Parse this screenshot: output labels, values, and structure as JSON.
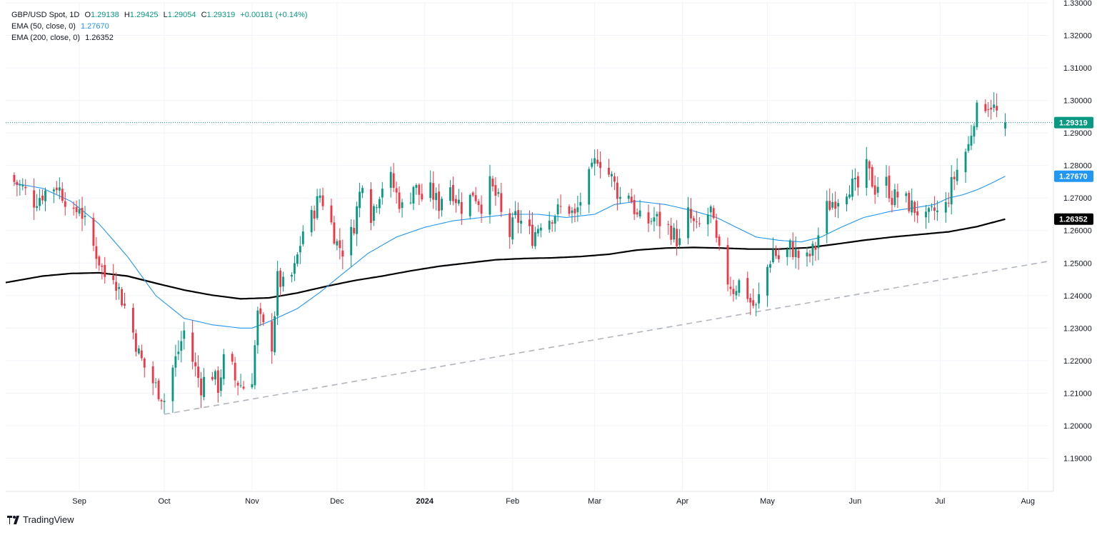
{
  "symbol": "GBP/USD Spot, 1D",
  "ohlc": {
    "open_label": "O",
    "open": "1.29138",
    "high_label": "H",
    "high": "1.29425",
    "low_label": "L",
    "low": "1.29054",
    "close_label": "C",
    "close": "1.29319",
    "change": "+0.00181 (+0.14%)"
  },
  "indicators": [
    {
      "label": "EMA (50, close, 0)",
      "value": "1.27670",
      "color": "#2196f3"
    },
    {
      "label": "EMA (200, close, 0)",
      "value": "1.26352",
      "color": "#000000"
    }
  ],
  "brand": "TradingView",
  "colors": {
    "up": "#089981",
    "down": "#f23645",
    "ema50": "#2196f3",
    "ema200": "#000000",
    "trend": "#b2b5be",
    "grid": "#f0f3fa",
    "axis": "#131722"
  },
  "chart_data": {
    "type": "candlestick",
    "title": "GBP/USD Spot, 1D",
    "ylim": [
      1.18,
      1.33
    ],
    "y_ticks": [
      "1.19000",
      "1.20000",
      "1.21000",
      "1.22000",
      "1.23000",
      "1.24000",
      "1.25000",
      "1.26000",
      "1.27000",
      "1.28000",
      "1.29000",
      "1.30000",
      "1.31000",
      "1.32000",
      "1.33000"
    ],
    "x_ticks": [
      {
        "label": "Sep",
        "day": 23,
        "bold": false
      },
      {
        "label": "Oct",
        "day": 53,
        "bold": false
      },
      {
        "label": "Nov",
        "day": 84,
        "bold": false
      },
      {
        "label": "Dec",
        "day": 114,
        "bold": false
      },
      {
        "label": "2024",
        "day": 145,
        "bold": true
      },
      {
        "label": "Feb",
        "day": 176,
        "bold": false
      },
      {
        "label": "Mar",
        "day": 205,
        "bold": false
      },
      {
        "label": "Apr",
        "day": 236,
        "bold": false
      },
      {
        "label": "May",
        "day": 266,
        "bold": false
      },
      {
        "label": "Jun",
        "day": 297,
        "bold": false
      },
      {
        "label": "Jul",
        "day": 327,
        "bold": false
      },
      {
        "label": "Aug",
        "day": 358,
        "bold": false
      }
    ],
    "day_range": [
      -3,
      365
    ],
    "close_path": [
      [
        0,
        1.275
      ],
      [
        3,
        1.273
      ],
      [
        7,
        1.269
      ],
      [
        11,
        1.272
      ],
      [
        15,
        1.274
      ],
      [
        18,
        1.27
      ],
      [
        20,
        1.262
      ],
      [
        23,
        1.268
      ],
      [
        26,
        1.259
      ],
      [
        29,
        1.253
      ],
      [
        32,
        1.246
      ],
      [
        35,
        1.247
      ],
      [
        38,
        1.239
      ],
      [
        41,
        1.232
      ],
      [
        44,
        1.222
      ],
      [
        47,
        1.216
      ],
      [
        50,
        1.212
      ],
      [
        53,
        1.208
      ],
      [
        55,
        1.215
      ],
      [
        58,
        1.223
      ],
      [
        61,
        1.232
      ],
      [
        63,
        1.22
      ],
      [
        66,
        1.212
      ],
      [
        69,
        1.218
      ],
      [
        72,
        1.212
      ],
      [
        75,
        1.224
      ],
      [
        78,
        1.214
      ],
      [
        81,
        1.212
      ],
      [
        84,
        1.215
      ],
      [
        86,
        1.234
      ],
      [
        88,
        1.23
      ],
      [
        91,
        1.225
      ],
      [
        93,
        1.245
      ],
      [
        96,
        1.242
      ],
      [
        99,
        1.248
      ],
      [
        102,
        1.26
      ],
      [
        105,
        1.264
      ],
      [
        108,
        1.271
      ],
      [
        111,
        1.265
      ],
      [
        114,
        1.256
      ],
      [
        117,
        1.253
      ],
      [
        120,
        1.262
      ],
      [
        123,
        1.276
      ],
      [
        126,
        1.265
      ],
      [
        129,
        1.272
      ],
      [
        132,
        1.278
      ],
      [
        135,
        1.271
      ],
      [
        138,
        1.265
      ],
      [
        141,
        1.274
      ],
      [
        144,
        1.27
      ],
      [
        147,
        1.272
      ],
      [
        150,
        1.268
      ],
      [
        153,
        1.276
      ],
      [
        156,
        1.27
      ],
      [
        159,
        1.266
      ],
      [
        162,
        1.272
      ],
      [
        165,
        1.268
      ],
      [
        168,
        1.274
      ],
      [
        171,
        1.269
      ],
      [
        174,
        1.256
      ],
      [
        177,
        1.264
      ],
      [
        180,
        1.262
      ],
      [
        183,
        1.258
      ],
      [
        186,
        1.263
      ],
      [
        189,
        1.264
      ],
      [
        192,
        1.266
      ],
      [
        195,
        1.268
      ],
      [
        198,
        1.264
      ],
      [
        201,
        1.272
      ],
      [
        204,
        1.278
      ],
      [
        206,
        1.283
      ],
      [
        208,
        1.28
      ],
      [
        211,
        1.276
      ],
      [
        214,
        1.27
      ],
      [
        217,
        1.272
      ],
      [
        220,
        1.264
      ],
      [
        223,
        1.262
      ],
      [
        226,
        1.264
      ],
      [
        229,
        1.262
      ],
      [
        232,
        1.26
      ],
      [
        235,
        1.256
      ],
      [
        238,
        1.265
      ],
      [
        241,
        1.26
      ],
      [
        244,
        1.264
      ],
      [
        246,
        1.266
      ],
      [
        248,
        1.256
      ],
      [
        251,
        1.246
      ],
      [
        254,
        1.242
      ],
      [
        257,
        1.245
      ],
      [
        260,
        1.238
      ],
      [
        262,
        1.236
      ],
      [
        265,
        1.246
      ],
      [
        268,
        1.254
      ],
      [
        271,
        1.25
      ],
      [
        274,
        1.255
      ],
      [
        277,
        1.252
      ],
      [
        280,
        1.251
      ],
      [
        283,
        1.255
      ],
      [
        286,
        1.266
      ],
      [
        289,
        1.269
      ],
      [
        292,
        1.271
      ],
      [
        295,
        1.274
      ],
      [
        298,
        1.273
      ],
      [
        301,
        1.279
      ],
      [
        304,
        1.273
      ],
      [
        307,
        1.277
      ],
      [
        310,
        1.27
      ],
      [
        313,
        1.271
      ],
      [
        316,
        1.268
      ],
      [
        319,
        1.266
      ],
      [
        322,
        1.263
      ],
      [
        325,
        1.266
      ],
      [
        328,
        1.264
      ],
      [
        331,
        1.274
      ],
      [
        334,
        1.281
      ],
      [
        337,
        1.286
      ],
      [
        339,
        1.295
      ],
      [
        341,
        1.298
      ],
      [
        343,
        1.299
      ],
      [
        345,
        1.299
      ],
      [
        347,
        1.296
      ],
      [
        349,
        1.2913
      ],
      [
        350,
        1.2932
      ]
    ],
    "ema50": [
      [
        0,
        1.2745
      ],
      [
        10,
        1.273
      ],
      [
        20,
        1.269
      ],
      [
        30,
        1.262
      ],
      [
        40,
        1.252
      ],
      [
        50,
        1.24
      ],
      [
        60,
        1.233
      ],
      [
        70,
        1.231
      ],
      [
        80,
        1.23
      ],
      [
        84,
        1.23
      ],
      [
        90,
        1.232
      ],
      [
        100,
        1.236
      ],
      [
        108,
        1.241
      ],
      [
        115,
        1.246
      ],
      [
        125,
        1.253
      ],
      [
        135,
        1.258
      ],
      [
        145,
        1.261
      ],
      [
        155,
        1.263
      ],
      [
        165,
        1.264
      ],
      [
        175,
        1.265
      ],
      [
        185,
        1.265
      ],
      [
        195,
        1.264
      ],
      [
        205,
        1.265
      ],
      [
        212,
        1.268
      ],
      [
        220,
        1.269
      ],
      [
        230,
        1.268
      ],
      [
        240,
        1.266
      ],
      [
        248,
        1.264
      ],
      [
        255,
        1.261
      ],
      [
        262,
        1.258
      ],
      [
        270,
        1.257
      ],
      [
        278,
        1.2565
      ],
      [
        285,
        1.258
      ],
      [
        292,
        1.261
      ],
      [
        300,
        1.264
      ],
      [
        310,
        1.266
      ],
      [
        318,
        1.267
      ],
      [
        325,
        1.268
      ],
      [
        330,
        1.27
      ],
      [
        335,
        1.271
      ],
      [
        340,
        1.2725
      ],
      [
        345,
        1.2745
      ],
      [
        350,
        1.2767
      ]
    ],
    "ema200": [
      [
        -3,
        1.244
      ],
      [
        10,
        1.246
      ],
      [
        20,
        1.2468
      ],
      [
        30,
        1.247
      ],
      [
        40,
        1.246
      ],
      [
        50,
        1.2438
      ],
      [
        60,
        1.2417
      ],
      [
        70,
        1.2401
      ],
      [
        80,
        1.239
      ],
      [
        90,
        1.2393
      ],
      [
        100,
        1.2408
      ],
      [
        110,
        1.2428
      ],
      [
        120,
        1.2446
      ],
      [
        130,
        1.246
      ],
      [
        140,
        1.2476
      ],
      [
        150,
        1.249
      ],
      [
        160,
        1.25
      ],
      [
        170,
        1.251
      ],
      [
        180,
        1.2514
      ],
      [
        190,
        1.2516
      ],
      [
        200,
        1.252
      ],
      [
        210,
        1.2527
      ],
      [
        220,
        1.254
      ],
      [
        230,
        1.2546
      ],
      [
        240,
        1.2548
      ],
      [
        250,
        1.2546
      ],
      [
        260,
        1.2543
      ],
      [
        270,
        1.2543
      ],
      [
        280,
        1.2547
      ],
      [
        290,
        1.2558
      ],
      [
        300,
        1.257
      ],
      [
        310,
        1.258
      ],
      [
        320,
        1.2588
      ],
      [
        330,
        1.2596
      ],
      [
        340,
        1.2612
      ],
      [
        350,
        1.2635
      ]
    ],
    "trendline": [
      [
        53,
        1.2035
      ],
      [
        365,
        1.2505
      ]
    ],
    "last_price": 1.29319,
    "price_badges": [
      {
        "value": "1.29319",
        "price": 1.29319,
        "bg": "#089981",
        "fg": "#ffffff"
      },
      {
        "value": "1.27670",
        "price": 1.2767,
        "bg": "#2196f3",
        "fg": "#ffffff"
      },
      {
        "value": "1.26352",
        "price": 1.26352,
        "bg": "#000000",
        "fg": "#ffffff"
      }
    ]
  }
}
